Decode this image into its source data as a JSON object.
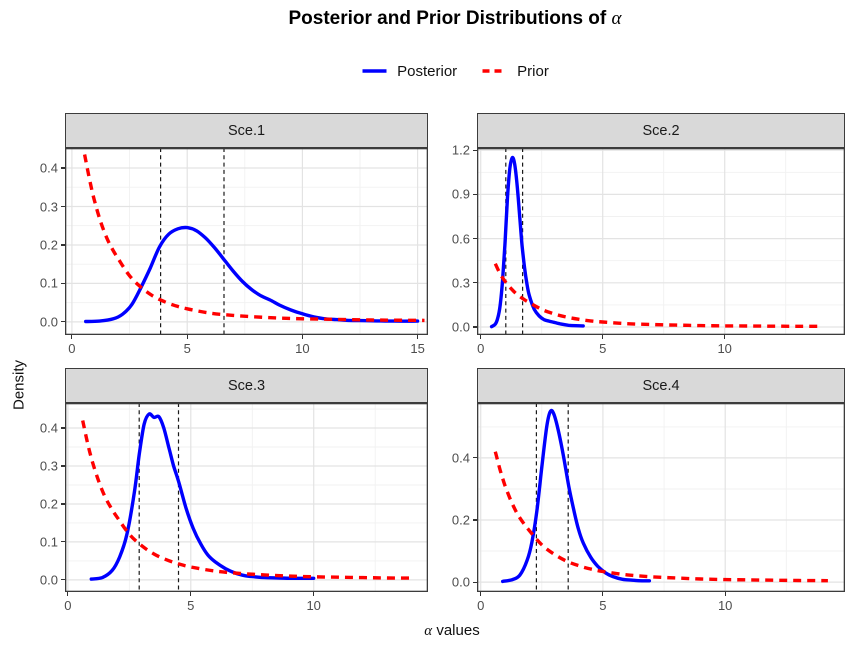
{
  "title": {
    "prefix": "Posterior and Prior Distributions of ",
    "symbol": "α"
  },
  "legend": {
    "items": [
      {
        "label": "Posterior",
        "color": "#0000FF",
        "style": "solid"
      },
      {
        "label": "Prior",
        "color": "#FF0000",
        "style": "dashed"
      }
    ]
  },
  "axes": {
    "y_label": "Density",
    "x_label_symbol": "α",
    "x_label_rest": " values"
  },
  "colors": {
    "posterior": "#0000FF",
    "prior": "#FF0000",
    "vline": "#1A1A1A",
    "strip_bg": "#D9D9D9",
    "panel_border": "#3C3C3C",
    "grid_major": "#E3E3E3",
    "grid_minor": "#F1F1F1",
    "tick_text": "#4D4D4D",
    "tick_mark": "#333333"
  },
  "chart_data": [
    {
      "type": "line",
      "facet": "Sce.1",
      "xlim": [
        -0.3,
        15.45
      ],
      "ylim": [
        -0.034,
        0.452
      ],
      "xticks": [
        0,
        5,
        10,
        15
      ],
      "yticks": [
        0.0,
        0.1,
        0.2,
        0.3,
        0.4
      ],
      "vlines": [
        3.85,
        6.6
      ],
      "series": [
        {
          "name": "Posterior",
          "x": [
            0.6,
            1.2,
            1.8,
            2.2,
            2.6,
            3.0,
            3.4,
            3.8,
            4.2,
            4.6,
            5.0,
            5.4,
            5.8,
            6.2,
            6.6,
            7.0,
            7.4,
            7.8,
            8.2,
            8.6,
            9.0,
            9.5,
            10.0,
            10.5,
            11.0,
            11.5,
            12.0,
            13.0,
            14.0,
            15.0
          ],
          "y": [
            0.001,
            0.002,
            0.008,
            0.02,
            0.045,
            0.09,
            0.14,
            0.195,
            0.228,
            0.242,
            0.245,
            0.237,
            0.218,
            0.192,
            0.162,
            0.132,
            0.105,
            0.084,
            0.068,
            0.057,
            0.044,
            0.031,
            0.021,
            0.013,
            0.008,
            0.006,
            0.004,
            0.003,
            0.002,
            0.002
          ]
        },
        {
          "name": "Prior",
          "x": [
            0.55,
            0.8,
            1.0,
            1.25,
            1.5,
            1.75,
            2.0,
            2.5,
            3.0,
            3.5,
            4.0,
            4.5,
            5.0,
            6.0,
            7.0,
            8.0,
            9.0,
            10.0,
            11.0,
            12.0,
            13.0,
            14.0,
            15.3
          ],
          "y": [
            0.435,
            0.36,
            0.31,
            0.26,
            0.22,
            0.19,
            0.165,
            0.12,
            0.09,
            0.068,
            0.053,
            0.042,
            0.034,
            0.023,
            0.017,
            0.013,
            0.01,
            0.008,
            0.007,
            0.006,
            0.005,
            0.0045,
            0.004
          ]
        }
      ]
    },
    {
      "type": "line",
      "facet": "Sce.2",
      "xlim": [
        -0.15,
        14.93
      ],
      "ylim": [
        -0.054,
        1.215
      ],
      "xticks": [
        0,
        5,
        10
      ],
      "yticks": [
        0.0,
        0.3,
        0.6,
        0.9,
        1.2
      ],
      "vlines": [
        1.03,
        1.72
      ],
      "series": [
        {
          "name": "Posterior",
          "x": [
            0.45,
            0.6,
            0.7,
            0.8,
            0.9,
            1.0,
            1.1,
            1.2,
            1.3,
            1.4,
            1.5,
            1.6,
            1.7,
            1.8,
            1.9,
            2.0,
            2.2,
            2.4,
            2.6,
            2.8,
            3.0,
            3.3,
            3.6,
            3.9,
            4.2
          ],
          "y": [
            0.003,
            0.02,
            0.06,
            0.15,
            0.32,
            0.58,
            0.88,
            1.08,
            1.15,
            1.1,
            0.95,
            0.75,
            0.55,
            0.4,
            0.29,
            0.21,
            0.12,
            0.075,
            0.05,
            0.04,
            0.032,
            0.02,
            0.012,
            0.009,
            0.008
          ]
        },
        {
          "name": "Prior",
          "x": [
            0.6,
            0.8,
            1.0,
            1.25,
            1.5,
            1.75,
            2.0,
            2.5,
            3.0,
            3.5,
            4.0,
            4.5,
            5.0,
            6.0,
            7.0,
            8.0,
            9.0,
            10.0,
            11.0,
            12.0,
            13.0,
            13.9
          ],
          "y": [
            0.43,
            0.36,
            0.31,
            0.26,
            0.22,
            0.19,
            0.165,
            0.12,
            0.09,
            0.068,
            0.053,
            0.042,
            0.034,
            0.023,
            0.017,
            0.013,
            0.01,
            0.008,
            0.007,
            0.006,
            0.005,
            0.005
          ]
        }
      ]
    },
    {
      "type": "line",
      "facet": "Sce.3",
      "xlim": [
        -0.12,
        14.65
      ],
      "ylim": [
        -0.032,
        0.466
      ],
      "xticks": [
        0,
        5,
        10
      ],
      "yticks": [
        0.0,
        0.1,
        0.2,
        0.3,
        0.4
      ],
      "vlines": [
        2.9,
        4.5
      ],
      "series": [
        {
          "name": "Posterior",
          "x": [
            0.95,
            1.4,
            1.8,
            2.1,
            2.4,
            2.7,
            2.9,
            3.1,
            3.3,
            3.5,
            3.7,
            3.9,
            4.1,
            4.3,
            4.5,
            4.8,
            5.1,
            5.4,
            5.7,
            6.0,
            6.4,
            6.8,
            7.2,
            7.6,
            8.0,
            8.6,
            9.2,
            10.0
          ],
          "y": [
            0.002,
            0.006,
            0.025,
            0.06,
            0.12,
            0.23,
            0.33,
            0.41,
            0.437,
            0.428,
            0.43,
            0.4,
            0.35,
            0.3,
            0.26,
            0.19,
            0.135,
            0.095,
            0.065,
            0.047,
            0.03,
            0.018,
            0.011,
            0.008,
            0.006,
            0.005,
            0.004,
            0.004
          ]
        },
        {
          "name": "Prior",
          "x": [
            0.6,
            0.8,
            1.0,
            1.25,
            1.5,
            1.75,
            2.0,
            2.5,
            3.0,
            3.5,
            4.0,
            4.5,
            5.0,
            6.0,
            7.0,
            8.0,
            9.0,
            10.0,
            11.0,
            12.0,
            13.0,
            14.1
          ],
          "y": [
            0.42,
            0.36,
            0.31,
            0.26,
            0.22,
            0.19,
            0.165,
            0.12,
            0.09,
            0.068,
            0.053,
            0.042,
            0.034,
            0.023,
            0.017,
            0.013,
            0.01,
            0.008,
            0.007,
            0.006,
            0.005,
            0.0045
          ]
        }
      ]
    },
    {
      "type": "line",
      "facet": "Sce.4",
      "xlim": [
        -0.15,
        14.9
      ],
      "ylim": [
        -0.032,
        0.577
      ],
      "xticks": [
        0,
        5,
        10
      ],
      "yticks": [
        0.0,
        0.2,
        0.4
      ],
      "vlines": [
        2.28,
        3.58
      ],
      "series": [
        {
          "name": "Posterior",
          "x": [
            0.9,
            1.3,
            1.6,
            1.9,
            2.1,
            2.3,
            2.5,
            2.7,
            2.85,
            3.0,
            3.2,
            3.4,
            3.6,
            3.8,
            4.0,
            4.2,
            4.5,
            4.8,
            5.1,
            5.4,
            5.8,
            6.2,
            6.6,
            6.9
          ],
          "y": [
            0.002,
            0.008,
            0.022,
            0.07,
            0.13,
            0.23,
            0.37,
            0.5,
            0.55,
            0.54,
            0.48,
            0.4,
            0.31,
            0.235,
            0.17,
            0.125,
            0.08,
            0.05,
            0.03,
            0.018,
            0.009,
            0.006,
            0.004,
            0.004
          ]
        },
        {
          "name": "Prior",
          "x": [
            0.6,
            0.8,
            1.0,
            1.25,
            1.5,
            1.75,
            2.0,
            2.5,
            3.0,
            3.5,
            4.0,
            4.5,
            5.0,
            6.0,
            7.0,
            8.0,
            9.0,
            10.0,
            11.0,
            12.0,
            13.0,
            14.2
          ],
          "y": [
            0.42,
            0.36,
            0.31,
            0.26,
            0.22,
            0.19,
            0.165,
            0.12,
            0.09,
            0.068,
            0.053,
            0.042,
            0.034,
            0.023,
            0.017,
            0.013,
            0.01,
            0.008,
            0.007,
            0.006,
            0.005,
            0.0045
          ]
        }
      ]
    }
  ]
}
